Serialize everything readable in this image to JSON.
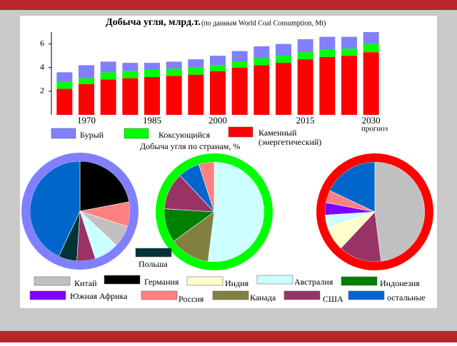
{
  "chart_data": [
    {
      "type": "bar",
      "stacked": true,
      "title": "Добыча угля, млрд.т.",
      "subtitle": "(по данным World Coal Consumption, Mt)",
      "annotation": "прогноз",
      "categories": [
        null,
        "1970",
        null,
        null,
        "1985",
        null,
        null,
        "2000",
        null,
        null,
        null,
        "2015",
        null,
        null,
        "2030"
      ],
      "series": [
        {
          "name": "Бурый",
          "color": "#8080ff",
          "values": [
            0.8,
            1.1,
            0.9,
            0.7,
            0.6,
            0.6,
            0.7,
            0.8,
            0.9,
            1.0,
            1.0,
            1.1,
            1.1,
            1.0,
            1.0
          ]
        },
        {
          "name": "Коксующийся",
          "color": "#00ff00",
          "values": [
            0.6,
            0.5,
            0.6,
            0.6,
            0.6,
            0.6,
            0.6,
            0.5,
            0.5,
            0.6,
            0.6,
            0.6,
            0.6,
            0.6,
            0.7
          ]
        },
        {
          "name": "Каменный (энергетический)",
          "color": "#ff0000",
          "values": [
            2.2,
            2.6,
            3.0,
            3.1,
            3.2,
            3.3,
            3.4,
            3.7,
            4.0,
            4.2,
            4.4,
            4.7,
            4.9,
            5.0,
            5.3
          ]
        }
      ],
      "ylim": [
        0,
        7
      ],
      "yticks": [
        2,
        4,
        6
      ]
    },
    {
      "type": "pie",
      "ring_color": "#8080ff",
      "categories": [
        "Германия",
        "Россия",
        "Китай",
        "Австралия",
        "США",
        "Польша",
        "остальные"
      ],
      "values": [
        22,
        8,
        7,
        8,
        6,
        6,
        43
      ]
    },
    {
      "type": "pie",
      "ring_color": "#00ff00",
      "categories": [
        "Австралия",
        "Канада",
        "Индонезия",
        "США",
        "остальные",
        "Россия"
      ],
      "values": [
        52,
        13,
        11,
        12,
        7,
        5
      ]
    },
    {
      "type": "pie",
      "ring_color": "#ff0000",
      "categories": [
        "Китай",
        "США",
        "Индия",
        "Австралия",
        "Южная Африка",
        "Россия",
        "остальные"
      ],
      "values": [
        48,
        14,
        8,
        4,
        4,
        4,
        18
      ]
    }
  ],
  "pies_title": "Добыча угля по странам, %",
  "countries": {
    "names": [
      "Китай",
      "Германия",
      "Индия",
      "Австралия",
      "Индонезия",
      "Польша",
      "Южная Африка",
      "Россия",
      "Канада",
      "США",
      "остальные"
    ],
    "colors": [
      "#c0c0c0",
      "#000000",
      "#ffffcc",
      "#ccffff",
      "#008000",
      "#003333",
      "#8000ff",
      "#ff8080",
      "#808040",
      "#993366",
      "#0066cc"
    ]
  }
}
